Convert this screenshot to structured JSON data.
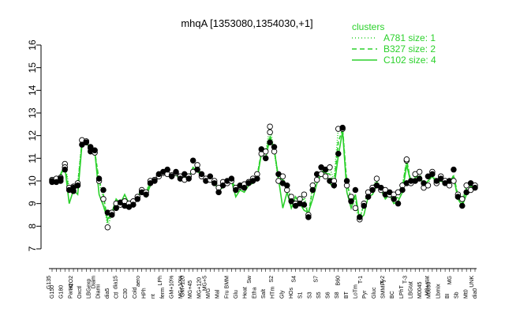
{
  "chart_data": {
    "type": "line",
    "title": "mhqA [1353080,1354030,+1]",
    "xlabel": "",
    "ylabel": "",
    "ylim": [
      7,
      16
    ],
    "yticks": [
      7,
      8,
      9,
      10,
      11,
      12,
      13,
      14,
      15,
      16
    ],
    "x_tick_labels_row1": [
      "G150",
      "G180",
      "Paraq",
      "Oxctl",
      "LBGexp",
      "Diami",
      "dia5",
      "Ctl",
      "C30",
      "Cold",
      "HPh",
      "nt",
      "ferm",
      "GM+10%",
      "MG+10%",
      "MG+45",
      "MG+120",
      "M/G",
      "Mal",
      "Fru",
      "Glu",
      "Heat",
      "Etha",
      "Salt",
      "HTm",
      "Gly",
      "HOs",
      "S1",
      "S3",
      "S5",
      "S6",
      "S8",
      "BT",
      "LoTm",
      "Pyr",
      "Gluc",
      "SMMPy",
      "BC",
      "LPhT",
      "LBGtat",
      "M0045",
      "M0090",
      "Lbmix",
      "BI",
      "Sb",
      "Mt0",
      "dia0"
    ],
    "x_tick_labels_row2": [
      "G135",
      "H2O2",
      "Diam",
      "dia15",
      "aero",
      "LPh",
      "GM+120",
      "MG+5",
      "BMM",
      "Sw",
      "S2",
      "S4",
      "S7",
      "B60",
      "T-1",
      "T-2",
      "T-3",
      "M9+stat",
      "MG",
      "UNK"
    ],
    "legend": {
      "title": "clusters",
      "entries": [
        {
          "label": "A781 size: 1",
          "style": "dotted",
          "color": "#2bd12b"
        },
        {
          "label": "B327 size: 2",
          "style": "dashed",
          "color": "#2bd12b"
        },
        {
          "label": "C102 size: 4",
          "style": "solid",
          "color": "#2bd12b"
        }
      ]
    },
    "n_conditions": 100,
    "series_color": "#2bd12b",
    "points": [
      {
        "filled": [
          10.0,
          9.95
        ],
        "open": [
          10.05
        ]
      },
      {
        "filled": [
          9.95
        ],
        "open": [
          10.1
        ]
      },
      {
        "filled": [
          10.0,
          10.1
        ],
        "open": [
          10.15
        ]
      },
      {
        "filled": [
          10.5
        ],
        "open": [
          10.75,
          10.6
        ]
      },
      {
        "filled": [
          9.6
        ],
        "open": [
          9.7
        ]
      },
      {
        "filled": [
          9.7,
          9.55
        ],
        "open": [
          9.75
        ]
      },
      {
        "filled": [
          9.8
        ],
        "open": [
          9.9
        ]
      },
      {
        "filled": [
          11.6
        ],
        "open": [
          11.8
        ]
      },
      {
        "filled": [
          11.7
        ],
        "open": [
          11.75
        ]
      },
      {
        "filled": [
          11.3,
          11.5
        ],
        "open": [
          11.45
        ]
      },
      {
        "filled": [
          11.35
        ],
        "open": [
          11.25
        ]
      },
      {
        "filled": [
          10.1
        ],
        "open": [
          10.0
        ]
      },
      {
        "filled": [
          9.6
        ],
        "open": [
          9.2
        ]
      },
      {
        "filled": [
          8.6
        ],
        "open": [
          7.95
        ]
      },
      {
        "filled": [
          8.5
        ],
        "open": [
          8.6
        ]
      },
      {
        "filled": [
          8.8
        ],
        "open": [
          9.0
        ]
      },
      {
        "filled": [
          9.05
        ],
        "open": [
          8.95
        ]
      },
      {
        "filled": [
          8.9
        ],
        "open": [
          9.1
        ]
      },
      {
        "filled": [
          8.85
        ],
        "open": [
          9.0
        ]
      },
      {
        "filled": [
          8.95
        ],
        "open": [
          9.1
        ]
      },
      {
        "filled": [
          9.2
        ],
        "open": [
          9.3
        ]
      },
      {
        "filled": [
          9.5
        ],
        "open": [
          9.6
        ]
      },
      {
        "filled": [
          9.4
        ],
        "open": [
          9.5
        ]
      },
      {
        "filled": [
          9.9
        ],
        "open": [
          10.0
        ]
      },
      {
        "filled": [
          10.0
        ],
        "open": [
          10.05
        ]
      },
      {
        "filled": [
          10.3
        ],
        "open": [
          10.2
        ]
      },
      {
        "filled": [
          10.4
        ],
        "open": [
          10.35
        ]
      },
      {
        "filled": [
          10.5
        ],
        "open": [
          10.3
        ]
      },
      {
        "filled": [
          10.2
        ],
        "open": [
          10.25
        ]
      },
      {
        "filled": [
          10.4
        ],
        "open": [
          10.35
        ]
      },
      {
        "filled": [
          10.1
        ],
        "open": [
          10.2
        ]
      },
      {
        "filled": [
          10.3
        ],
        "open": [
          10.05
        ]
      },
      {
        "filled": [
          10.1
        ],
        "open": [
          10.2
        ]
      },
      {
        "filled": [
          10.9
        ],
        "open": [
          10.4
        ]
      },
      {
        "filled": [
          10.5
        ],
        "open": [
          10.7
        ]
      },
      {
        "filled": [
          10.3
        ],
        "open": [
          10.2
        ]
      },
      {
        "filled": [
          10.0
        ],
        "open": [
          10.1
        ]
      },
      {
        "filled": [
          10.2
        ],
        "open": [
          10.05
        ]
      },
      {
        "filled": [
          9.9
        ],
        "open": [
          10.0
        ]
      },
      {
        "filled": [
          9.5
        ],
        "open": [
          9.7
        ]
      },
      {
        "filled": [
          9.8
        ],
        "open": [
          9.95
        ]
      },
      {
        "filled": [
          10.0
        ],
        "open": [
          9.9
        ]
      },
      {
        "filled": [
          10.1
        ],
        "open": [
          10.0
        ]
      },
      {
        "filled": [
          9.6
        ],
        "open": [
          9.7
        ]
      },
      {
        "filled": [
          9.8
        ],
        "open": [
          9.75
        ]
      },
      {
        "filled": [
          9.7
        ],
        "open": [
          9.85
        ]
      },
      {
        "filled": [
          9.9
        ],
        "open": [
          9.95
        ]
      },
      {
        "filled": [
          10.0
        ],
        "open": [
          10.1
        ]
      },
      {
        "filled": [
          10.1
        ],
        "open": [
          10.3
        ]
      },
      {
        "filled": [
          11.4
        ],
        "open": [
          11.2
        ]
      },
      {
        "filled": [
          11.0
        ],
        "open": [
          11.3
        ]
      },
      {
        "filled": [
          11.7
        ],
        "open": [
          12.4,
          12.15
        ]
      },
      {
        "filled": [
          11.5
        ],
        "open": [
          11.3
        ]
      },
      {
        "filled": [
          10.3
        ],
        "open": [
          10.0
        ]
      },
      {
        "filled": [
          9.9
        ],
        "open": [
          10.2
        ]
      },
      {
        "filled": [
          9.8
        ],
        "open": [
          9.6
        ]
      },
      {
        "filled": [
          9.1
        ],
        "open": [
          9.3
        ]
      },
      {
        "filled": [
          8.9
        ],
        "open": [
          9.0
        ]
      },
      {
        "filled": [
          9.0
        ],
        "open": [
          9.2
        ]
      },
      {
        "filled": [
          8.95
        ],
        "open": [
          9.4
        ]
      },
      {
        "filled": [
          8.4
        ],
        "open": [
          8.5
        ]
      },
      {
        "filled": [
          9.6
        ],
        "open": [
          9.8
        ]
      },
      {
        "filled": [
          10.3
        ],
        "open": [
          10.05
        ]
      },
      {
        "filled": [
          10.6
        ],
        "open": [
          10.3
        ]
      },
      {
        "filled": [
          10.5
        ],
        "open": [
          10.2
        ]
      },
      {
        "filled": [
          10.0
        ],
        "open": [
          10.6
        ]
      },
      {
        "filled": [
          9.8
        ],
        "open": [
          10.0
        ]
      },
      {
        "filled": [
          11.2
        ],
        "open": [
          12.3
        ]
      },
      {
        "filled": [
          12.35
        ],
        "open": [
          12.3
        ]
      },
      {
        "filled": [
          10.0
        ],
        "open": [
          9.8
        ]
      },
      {
        "filled": [
          9.1
        ],
        "open": [
          9.3
        ]
      },
      {
        "filled": [
          9.6
        ],
        "open": [
          8.8
        ]
      },
      {
        "filled": [
          8.4
        ],
        "open": [
          8.3
        ]
      },
      {
        "filled": [
          8.9
        ],
        "open": [
          9.0
        ]
      },
      {
        "filled": [
          9.3
        ],
        "open": [
          9.5
        ]
      },
      {
        "filled": [
          9.6
        ],
        "open": [
          9.7
        ]
      },
      {
        "filled": [
          9.8
        ],
        "open": [
          10.1
        ]
      },
      {
        "filled": [
          9.7
        ],
        "open": [
          9.6
        ]
      },
      {
        "filled": [
          9.4
        ],
        "open": [
          9.6
        ]
      },
      {
        "filled": [
          9.5
        ],
        "open": [
          9.4
        ]
      },
      {
        "filled": [
          9.2
        ],
        "open": [
          9.4
        ]
      },
      {
        "filled": [
          9.0
        ],
        "open": [
          9.5
        ]
      },
      {
        "filled": [
          9.6
        ],
        "open": [
          9.8
        ]
      },
      {
        "filled": [
          9.9
        ],
        "open": [
          10.9,
          10.95
        ]
      },
      {
        "filled": [
          10.0
        ],
        "open": [
          9.9
        ]
      },
      {
        "filled": [
          10.0
        ],
        "open": [
          10.3
        ]
      },
      {
        "filled": [
          10.1
        ],
        "open": [
          10.4
        ]
      },
      {
        "filled": [
          9.9
        ],
        "open": [
          9.7
        ]
      },
      {
        "filled": [
          10.2
        ],
        "open": [
          9.8
        ]
      },
      {
        "filled": [
          10.3
        ],
        "open": [
          10.4
        ]
      },
      {
        "filled": [
          10.0
        ],
        "open": [
          9.9
        ]
      },
      {
        "filled": [
          10.1
        ],
        "open": [
          10.2
        ]
      },
      {
        "filled": [
          9.9
        ],
        "open": [
          10.0
        ]
      },
      {
        "filled": [
          10.0
        ],
        "open": [
          9.8
        ]
      },
      {
        "filled": [
          10.5
        ],
        "open": [
          10.0
        ]
      },
      {
        "filled": [
          9.3
        ],
        "open": [
          9.4
        ]
      },
      {
        "filled": [
          8.9
        ],
        "open": [
          9.2
        ]
      },
      {
        "filled": [
          9.5
        ],
        "open": [
          9.8
        ]
      },
      {
        "filled": [
          9.9
        ],
        "open": [
          9.6
        ]
      },
      {
        "filled": [
          9.7
        ],
        "open": [
          9.8
        ]
      }
    ],
    "line_solid": [
      10.0,
      9.9,
      10.3,
      10.6,
      9.0,
      9.6,
      9.4,
      11.6,
      11.7,
      11.4,
      11.3,
      9.4,
      8.9,
      8.3,
      8.6,
      9.2,
      9.0,
      9.4,
      9.0,
      8.9,
      9.3,
      9.6,
      9.3,
      9.8,
      10.0,
      10.2,
      10.3,
      10.5,
      10.1,
      10.3,
      10.0,
      10.2,
      10.1,
      10.6,
      10.4,
      10.3,
      10.0,
      10.1,
      9.9,
      9.6,
      9.7,
      9.9,
      10.0,
      9.3,
      9.6,
      9.5,
      9.8,
      9.9,
      10.1,
      11.2,
      11.0,
      11.9,
      11.4,
      10.1,
      8.8,
      9.5,
      8.8,
      9.3,
      9.0,
      8.7,
      8.6,
      9.2,
      9.9,
      10.3,
      10.4,
      9.9,
      9.7,
      11.1,
      12.2,
      9.5,
      8.8,
      9.4,
      8.3,
      8.5,
      9.3,
      9.4,
      9.8,
      9.6,
      9.2,
      9.4,
      9.0,
      9.1,
      9.5,
      10.7,
      9.9,
      10.0,
      10.2,
      9.8,
      10.0,
      10.2,
      9.9,
      10.0,
      9.9,
      9.8,
      10.2,
      9.2,
      8.9,
      9.4,
      9.6,
      9.8
    ],
    "line_dashed": [
      10.0,
      10.0,
      10.3,
      10.7,
      9.5,
      9.7,
      9.8,
      11.7,
      11.7,
      11.45,
      11.3,
      10.0,
      9.4,
      8.2,
      8.6,
      8.9,
      9.0,
      9.0,
      8.9,
      9.0,
      9.25,
      9.55,
      9.45,
      9.95,
      10.0,
      10.25,
      10.35,
      10.4,
      10.2,
      10.35,
      10.15,
      10.2,
      10.15,
      10.6,
      10.6,
      10.25,
      10.05,
      10.1,
      9.95,
      9.6,
      9.85,
      9.95,
      10.05,
      9.65,
      9.8,
      9.8,
      9.9,
      10.05,
      10.2,
      11.3,
      11.15,
      12.0,
      11.4,
      10.15,
      10.05,
      9.7,
      9.2,
      8.95,
      9.1,
      9.2,
      8.45,
      9.7,
      10.2,
      10.45,
      10.35,
      10.3,
      9.9,
      11.7,
      12.3,
      9.9,
      9.2,
      9.2,
      8.35,
      8.95,
      9.4,
      9.65,
      9.95,
      9.65,
      9.5,
      9.45,
      9.3,
      9.25,
      9.7,
      10.9,
      9.95,
      10.15,
      10.25,
      9.8,
      10.0,
      10.35,
      9.95,
      10.15,
      9.95,
      9.9,
      10.25,
      9.35,
      9.05,
      9.65,
      9.75,
      9.75
    ],
    "line_dotted": [
      10.05,
      10.1,
      10.15,
      10.75,
      9.7,
      9.75,
      9.9,
      11.8,
      11.75,
      11.45,
      11.25,
      10.0,
      9.2,
      7.95,
      8.6,
      9.0,
      8.95,
      9.1,
      9.0,
      9.1,
      9.3,
      9.6,
      9.5,
      10.0,
      10.05,
      10.2,
      10.35,
      10.3,
      10.25,
      10.35,
      10.2,
      10.05,
      10.2,
      10.4,
      10.7,
      10.2,
      10.1,
      10.05,
      10.0,
      9.7,
      9.95,
      9.9,
      10.0,
      9.7,
      9.75,
      9.85,
      9.95,
      10.1,
      10.3,
      11.2,
      11.3,
      12.4,
      11.3,
      10.0,
      10.2,
      9.6,
      9.3,
      9.0,
      9.2,
      9.4,
      8.5,
      9.8,
      10.05,
      10.3,
      10.2,
      10.6,
      10.0,
      12.3,
      12.3,
      9.8,
      9.3,
      8.8,
      8.3,
      9.0,
      9.5,
      9.7,
      10.1,
      9.6,
      9.6,
      9.4,
      9.4,
      9.5,
      9.8,
      10.95,
      9.9,
      10.3,
      10.4,
      9.7,
      9.8,
      10.4,
      9.9,
      10.2,
      10.0,
      9.8,
      10.0,
      9.4,
      9.2,
      9.8,
      9.6,
      9.8
    ]
  }
}
